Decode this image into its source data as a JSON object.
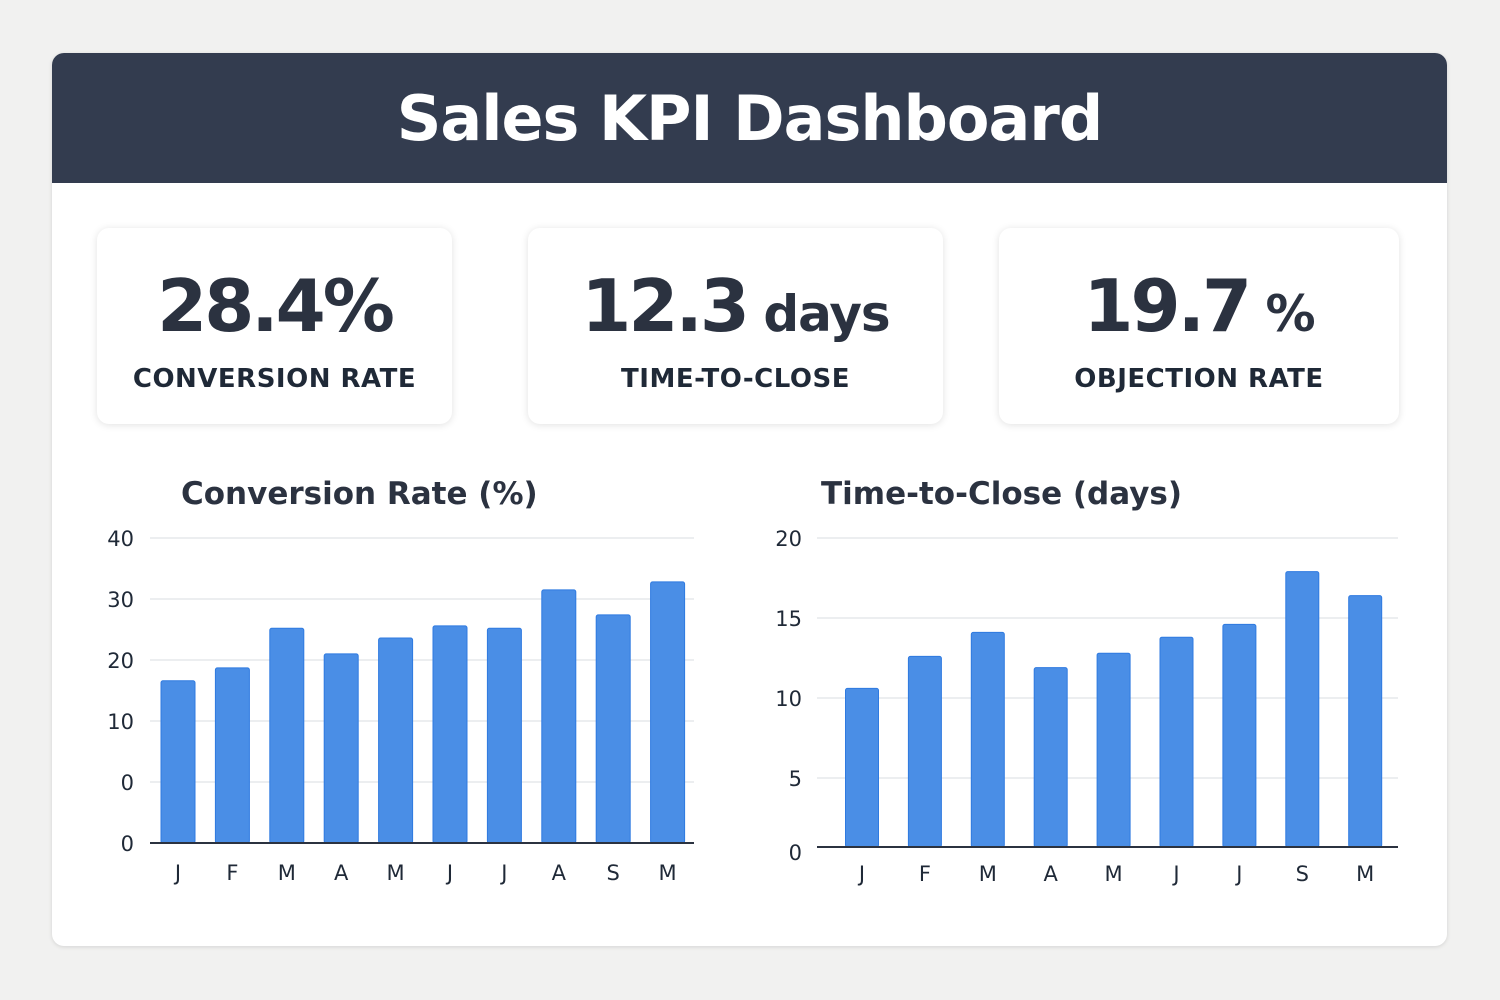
{
  "header": {
    "title": "Sales KPI Dashboard"
  },
  "kpis": [
    {
      "value": "28.4%",
      "unit": "",
      "label": "CONVERSION RATE"
    },
    {
      "value": "12.3",
      "unit": " days",
      "label": "TIME-TO-CLOSE"
    },
    {
      "value": "19.7",
      "unit": " %",
      "label": "OBJECTION RATE"
    }
  ],
  "colors": {
    "header": "#333c4f",
    "bar": "#4a8ee6",
    "bar_border": "#2f7ae0"
  },
  "chart_data": [
    {
      "type": "bar",
      "title": "Conversion Rate (%)",
      "categories": [
        "J",
        "F",
        "M",
        "A",
        "M",
        "J",
        "J",
        "A",
        "S",
        "M"
      ],
      "values": [
        16.6,
        18.7,
        25.2,
        21.0,
        23.6,
        25.6,
        25.2,
        31.5,
        27.4,
        32.8
      ],
      "ytick_labels": [
        "40",
        "30",
        "20",
        "10",
        "0",
        "0"
      ],
      "ylim": [
        0,
        40
      ],
      "grid": true
    },
    {
      "type": "bar",
      "title": "Time-to-Close (days)",
      "categories": [
        "J",
        "F",
        "M",
        "A",
        "M",
        "J",
        "J",
        "S",
        "M"
      ],
      "values": [
        10.6,
        12.6,
        14.1,
        11.9,
        12.8,
        13.8,
        14.6,
        17.9,
        16.4
      ],
      "ytick_labels": [
        "20",
        "15",
        "10",
        "5",
        "0"
      ],
      "ylim": [
        0,
        20
      ],
      "grid": true
    }
  ]
}
